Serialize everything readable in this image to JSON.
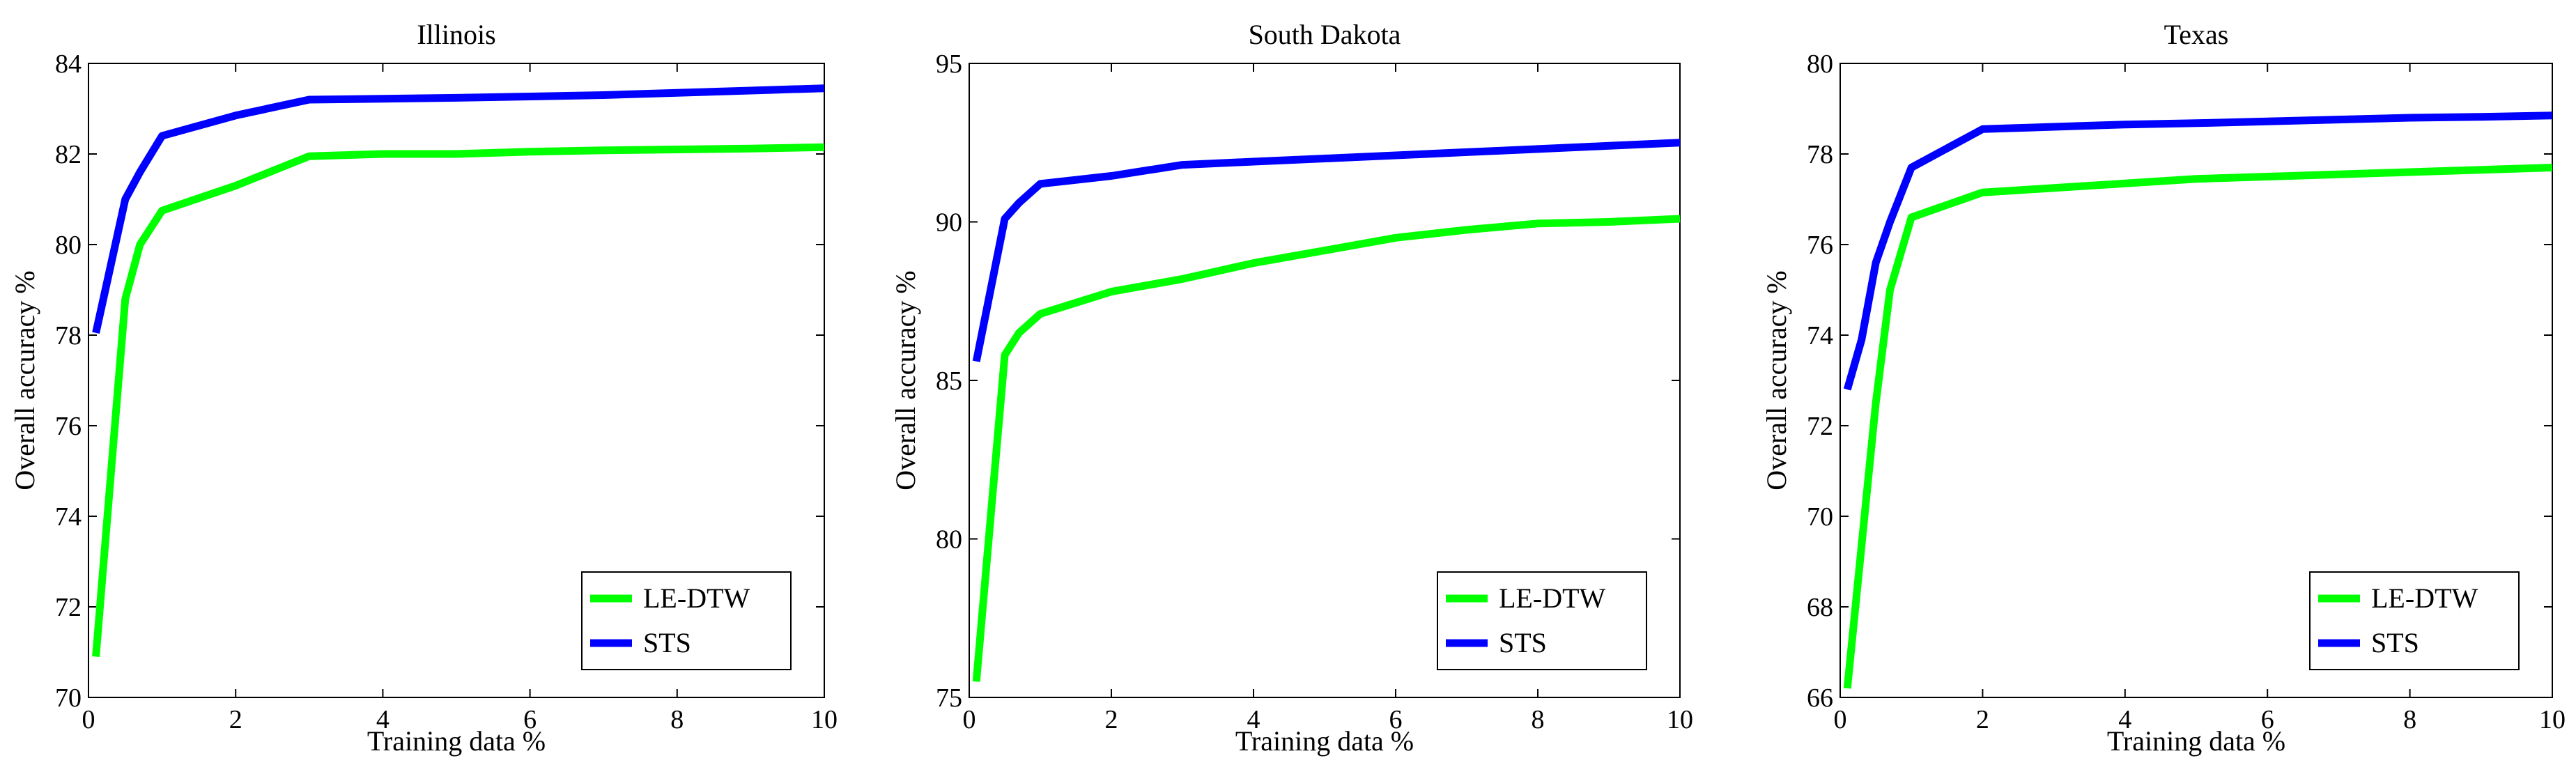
{
  "chart_data": [
    {
      "type": "line",
      "title": "Illinois",
      "xlabel": "Training data %",
      "ylabel": "Overall accuracy %",
      "xlim": [
        0,
        10
      ],
      "ylim": [
        70,
        84
      ],
      "xticks": [
        0,
        2,
        4,
        6,
        8,
        10
      ],
      "yticks": [
        70,
        72,
        74,
        76,
        78,
        80,
        82,
        84
      ],
      "grid": false,
      "legend_position": "bottom-right",
      "series": [
        {
          "name": "LE-DTW",
          "color": "#00ff00",
          "x": [
            0.1,
            0.5,
            0.7,
            1,
            2,
            3,
            4,
            5,
            6,
            7,
            8,
            9,
            10
          ],
          "y": [
            70.9,
            78.8,
            80.0,
            80.75,
            81.3,
            81.95,
            82.0,
            82.0,
            82.05,
            82.08,
            82.1,
            82.12,
            82.15
          ]
        },
        {
          "name": "STS",
          "color": "#0000ff",
          "x": [
            0.1,
            0.5,
            0.7,
            1,
            2,
            3,
            4,
            5,
            6,
            7,
            8,
            9,
            10
          ],
          "y": [
            78.05,
            81.0,
            81.6,
            82.4,
            82.85,
            83.2,
            83.22,
            83.24,
            83.27,
            83.3,
            83.35,
            83.4,
            83.45
          ]
        }
      ]
    },
    {
      "type": "line",
      "title": "South Dakota",
      "xlabel": "Training data %",
      "ylabel": "Overall accuracy %",
      "xlim": [
        0,
        10
      ],
      "ylim": [
        75,
        95
      ],
      "xticks": [
        0,
        2,
        4,
        6,
        8,
        10
      ],
      "yticks": [
        75,
        80,
        85,
        90,
        95
      ],
      "grid": false,
      "legend_position": "bottom-right",
      "series": [
        {
          "name": "LE-DTW",
          "color": "#00ff00",
          "x": [
            0.1,
            0.5,
            0.7,
            1,
            2,
            3,
            4,
            5,
            6,
            7,
            8,
            9,
            10
          ],
          "y": [
            75.5,
            85.8,
            86.5,
            87.1,
            87.8,
            88.2,
            88.7,
            89.1,
            89.5,
            89.75,
            89.95,
            90.0,
            90.1
          ],
          "_note": ""
        },
        {
          "name": "STS",
          "color": "#0000ff",
          "x": [
            0.1,
            0.5,
            0.7,
            1,
            2,
            3,
            4,
            5,
            6,
            7,
            8,
            9,
            10
          ],
          "y": [
            85.6,
            90.1,
            90.6,
            91.2,
            91.45,
            91.8,
            91.9,
            92.0,
            92.1,
            92.2,
            92.3,
            92.4,
            92.5
          ]
        }
      ]
    },
    {
      "type": "line",
      "title": "Texas",
      "xlabel": "Training data %",
      "ylabel": "Overall accuracy %",
      "xlim": [
        0,
        10
      ],
      "ylim": [
        66,
        80
      ],
      "xticks": [
        0,
        2,
        4,
        6,
        8,
        10
      ],
      "yticks": [
        66,
        68,
        70,
        72,
        74,
        76,
        78,
        80
      ],
      "grid": false,
      "legend_position": "bottom-right",
      "series": [
        {
          "name": "LE-DTW",
          "color": "#00ff00",
          "x": [
            0.1,
            0.5,
            0.7,
            1,
            2,
            3,
            4,
            5,
            6,
            7,
            8,
            9,
            10
          ],
          "y": [
            66.2,
            72.5,
            75.0,
            76.6,
            77.15,
            77.25,
            77.35,
            77.45,
            77.5,
            77.55,
            77.6,
            77.65,
            77.7
          ]
        },
        {
          "name": "STS",
          "color": "#0000ff",
          "x": [
            0.1,
            0.3,
            0.5,
            0.7,
            1,
            2,
            3,
            4,
            5,
            6,
            7,
            8,
            9,
            10
          ],
          "y": [
            72.8,
            73.9,
            75.6,
            76.5,
            77.7,
            78.55,
            78.6,
            78.65,
            78.68,
            78.72,
            78.76,
            78.8,
            78.82,
            78.85
          ]
        }
      ]
    }
  ]
}
